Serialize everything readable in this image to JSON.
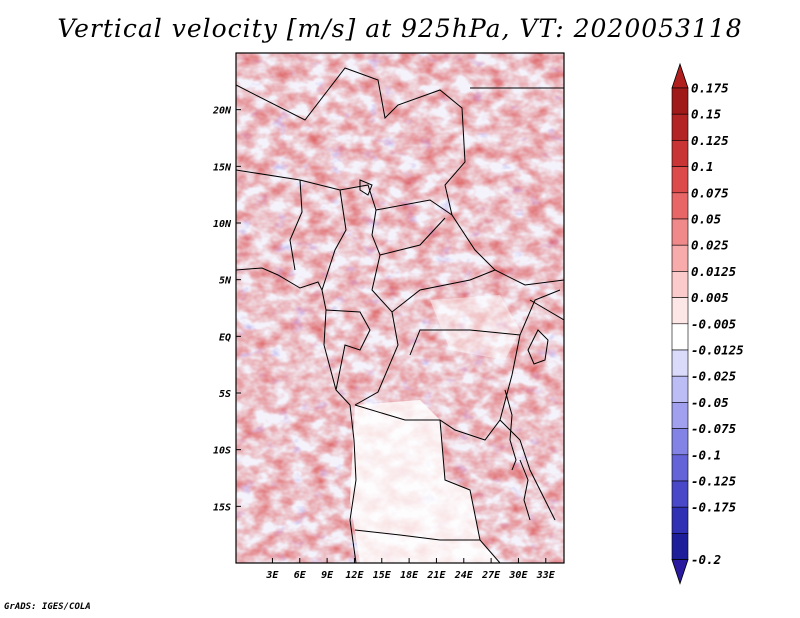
{
  "title": "Vertical velocity [m/s] at 925hPa, VT: 2020053118",
  "credit": "GrADS: IGES/COLA",
  "map": {
    "lon_range": [
      -1,
      35
    ],
    "lat_range": [
      -20,
      25
    ],
    "lon_ticks": [
      {
        "value": 3,
        "label": "3E"
      },
      {
        "value": 6,
        "label": "6E"
      },
      {
        "value": 9,
        "label": "9E"
      },
      {
        "value": 12,
        "label": "12E"
      },
      {
        "value": 15,
        "label": "15E"
      },
      {
        "value": 18,
        "label": "18E"
      },
      {
        "value": 21,
        "label": "21E"
      },
      {
        "value": 24,
        "label": "24E"
      },
      {
        "value": 27,
        "label": "27E"
      },
      {
        "value": 30,
        "label": "30E"
      },
      {
        "value": 33,
        "label": "33E"
      }
    ],
    "lat_ticks": [
      {
        "value": 20,
        "label": "20N"
      },
      {
        "value": 15,
        "label": "15N"
      },
      {
        "value": 10,
        "label": "10N"
      },
      {
        "value": 5,
        "label": "5N"
      },
      {
        "value": 0,
        "label": "EQ"
      },
      {
        "value": -5,
        "label": "5S"
      },
      {
        "value": -10,
        "label": "10S"
      },
      {
        "value": -15,
        "label": "15S"
      }
    ]
  },
  "colorbar": {
    "levels": [
      {
        "label": "0.175",
        "color": "#a01a1a"
      },
      {
        "label": "0.15",
        "color": "#b32424"
      },
      {
        "label": "0.125",
        "color": "#c93434"
      },
      {
        "label": "0.1",
        "color": "#dc4a4a"
      },
      {
        "label": "0.075",
        "color": "#e86666"
      },
      {
        "label": "0.05",
        "color": "#f08a8a"
      },
      {
        "label": "0.025",
        "color": "#f7abab"
      },
      {
        "label": "0.0125",
        "color": "#fbcaca"
      },
      {
        "label": "0.005",
        "color": "#fde6e6"
      },
      {
        "label": "-0.005",
        "color": "#ffffff"
      },
      {
        "label": "-0.0125",
        "color": "#dadafb"
      },
      {
        "label": "-0.025",
        "color": "#bdbdf5"
      },
      {
        "label": "-0.05",
        "color": "#a0a0ef"
      },
      {
        "label": "-0.075",
        "color": "#8383e6"
      },
      {
        "label": "-0.1",
        "color": "#6464d8"
      },
      {
        "label": "-0.125",
        "color": "#4848c8"
      },
      {
        "label": "-0.175",
        "color": "#3030b4"
      },
      {
        "label": "-0.2",
        "color": "#1e1e9a"
      }
    ],
    "top_color": "#b01e1e",
    "bottom_color": "#2a1aa0"
  }
}
